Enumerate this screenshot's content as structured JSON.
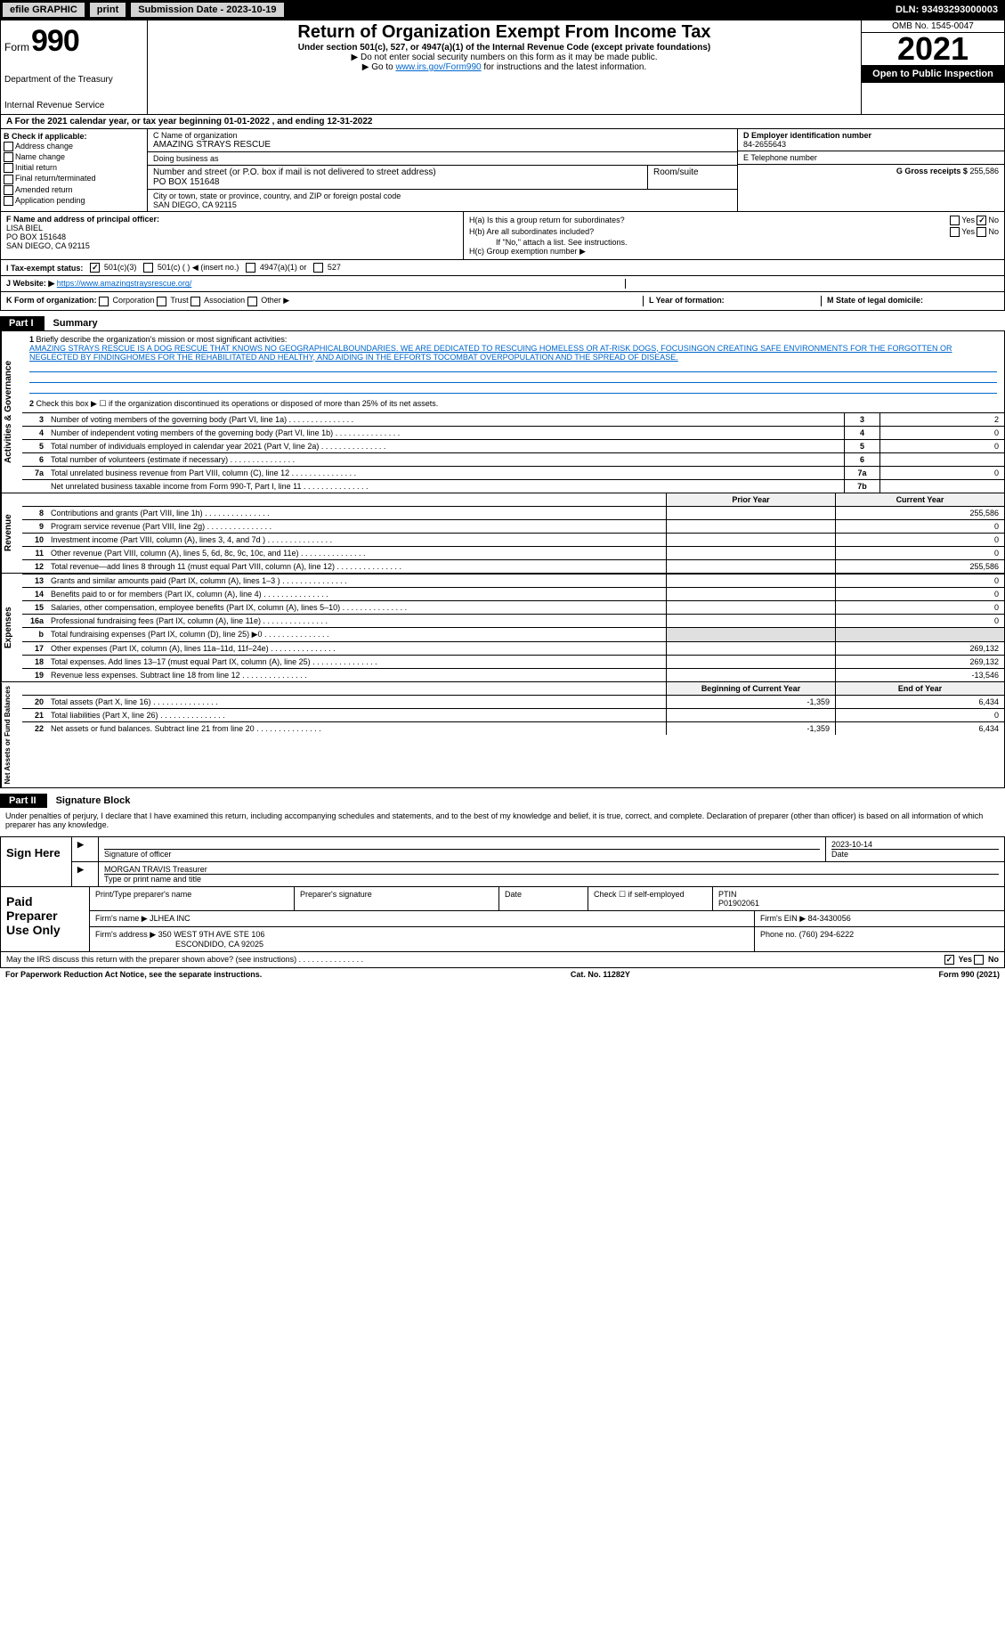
{
  "topbar": {
    "efile": "efile GRAPHIC",
    "print": "print",
    "submission": "Submission Date - 2023-10-19",
    "dln": "DLN: 93493293000003"
  },
  "header": {
    "form_label": "Form",
    "form_num": "990",
    "dept": "Department of the Treasury",
    "irs": "Internal Revenue Service",
    "title": "Return of Organization Exempt From Income Tax",
    "subtitle": "Under section 501(c), 527, or 4947(a)(1) of the Internal Revenue Code (except private foundations)",
    "note1": "▶ Do not enter social security numbers on this form as it may be made public.",
    "note2_pre": "▶ Go to ",
    "note2_link": "www.irs.gov/Form990",
    "note2_post": " for instructions and the latest information.",
    "omb": "OMB No. 1545-0047",
    "year": "2021",
    "inspect": "Open to Public Inspection"
  },
  "row_a": "A For the 2021 calendar year, or tax year beginning 01-01-2022    , and ending 12-31-2022",
  "col_b": {
    "label": "B Check if applicable:",
    "items": [
      "Address change",
      "Name change",
      "Initial return",
      "Final return/terminated",
      "Amended return",
      "Application pending"
    ]
  },
  "col_c": {
    "c_label": "C Name of organization",
    "name": "AMAZING STRAYS RESCUE",
    "dba_label": "Doing business as",
    "addr_label": "Number and street (or P.O. box if mail is not delivered to street address)",
    "room_label": "Room/suite",
    "addr": "PO BOX 151648",
    "city_label": "City or town, state or province, country, and ZIP or foreign postal code",
    "city": "SAN DIEGO, CA  92115"
  },
  "col_d": {
    "d_label": "D Employer identification number",
    "ein": "84-2655643",
    "e_label": "E Telephone number",
    "phone": "",
    "g_label": "G Gross receipts $",
    "gross": "255,586"
  },
  "officer": {
    "f_label": "F Name and address of principal officer:",
    "name": "LISA BIEL",
    "addr1": "PO BOX 151648",
    "addr2": "SAN DIEGO, CA  92115",
    "ha": "H(a)  Is this a group return for subordinates?",
    "ha_ans": "No",
    "hb": "H(b)  Are all subordinates included?",
    "hb_note": "If \"No,\" attach a list. See instructions.",
    "hc": "H(c)  Group exemption number ▶"
  },
  "tax": {
    "i_label": "I  Tax-exempt status:",
    "opt1": "501(c)(3)",
    "opt2": "501(c) (   ) ◀ (insert no.)",
    "opt3": "4947(a)(1) or",
    "opt4": "527"
  },
  "website": {
    "j_label": "J  Website: ▶",
    "url": "https://www.amazingstraysrescue.org/"
  },
  "k_row": {
    "k_label": "K Form of organization:",
    "opts": [
      "Corporation",
      "Trust",
      "Association",
      "Other ▶"
    ],
    "l_label": "L Year of formation:",
    "m_label": "M State of legal domicile:"
  },
  "part1": {
    "tab": "Part I",
    "title": "Summary"
  },
  "summary": {
    "q1": "Briefly describe the organization's mission or most significant activities:",
    "mission": "AMAZING STRAYS RESCUE IS A DOG RESCUE THAT KNOWS NO GEOGRAPHICALBOUNDARIES. WE ARE DEDICATED TO RESCUING HOMELESS OR AT-RISK DOGS, FOCUSINGON CREATING SAFE ENVIRONMENTS FOR THE FORGOTTEN OR NEGLECTED BY FINDINGHOMES FOR THE REHABILITATED AND HEALTHY, AND AIDING IN THE EFFORTS TOCOMBAT OVERPOPULATION AND THE SPREAD OF DISEASE.",
    "q2": "Check this box ▶ ☐  if the organization discontinued its operations or disposed of more than 25% of its net assets.",
    "sidebars": {
      "gov": "Activities & Governance",
      "rev": "Revenue",
      "exp": "Expenses",
      "net": "Net Assets or Fund Balances"
    },
    "lines_gov": [
      {
        "n": "3",
        "d": "Number of voting members of the governing body (Part VI, line 1a)",
        "box": "3",
        "v": "2"
      },
      {
        "n": "4",
        "d": "Number of independent voting members of the governing body (Part VI, line 1b)",
        "box": "4",
        "v": "0"
      },
      {
        "n": "5",
        "d": "Total number of individuals employed in calendar year 2021 (Part V, line 2a)",
        "box": "5",
        "v": "0"
      },
      {
        "n": "6",
        "d": "Total number of volunteers (estimate if necessary)",
        "box": "6",
        "v": ""
      },
      {
        "n": "7a",
        "d": "Total unrelated business revenue from Part VIII, column (C), line 12",
        "box": "7a",
        "v": "0"
      },
      {
        "n": "",
        "d": "Net unrelated business taxable income from Form 990-T, Part I, line 11",
        "box": "7b",
        "v": ""
      }
    ],
    "prior_hdr": "Prior Year",
    "curr_hdr": "Current Year",
    "lines_rev": [
      {
        "n": "8",
        "d": "Contributions and grants (Part VIII, line 1h)",
        "p": "",
        "c": "255,586"
      },
      {
        "n": "9",
        "d": "Program service revenue (Part VIII, line 2g)",
        "p": "",
        "c": "0"
      },
      {
        "n": "10",
        "d": "Investment income (Part VIII, column (A), lines 3, 4, and 7d )",
        "p": "",
        "c": "0"
      },
      {
        "n": "11",
        "d": "Other revenue (Part VIII, column (A), lines 5, 6d, 8c, 9c, 10c, and 11e)",
        "p": "",
        "c": "0"
      },
      {
        "n": "12",
        "d": "Total revenue—add lines 8 through 11 (must equal Part VIII, column (A), line 12)",
        "p": "",
        "c": "255,586"
      }
    ],
    "lines_exp": [
      {
        "n": "13",
        "d": "Grants and similar amounts paid (Part IX, column (A), lines 1–3 )",
        "p": "",
        "c": "0"
      },
      {
        "n": "14",
        "d": "Benefits paid to or for members (Part IX, column (A), line 4)",
        "p": "",
        "c": "0"
      },
      {
        "n": "15",
        "d": "Salaries, other compensation, employee benefits (Part IX, column (A), lines 5–10)",
        "p": "",
        "c": "0"
      },
      {
        "n": "16a",
        "d": "Professional fundraising fees (Part IX, column (A), line 11e)",
        "p": "",
        "c": "0"
      },
      {
        "n": "b",
        "d": "Total fundraising expenses (Part IX, column (D), line 25) ▶0",
        "p": "shaded",
        "c": "shaded"
      },
      {
        "n": "17",
        "d": "Other expenses (Part IX, column (A), lines 11a–11d, 11f–24e)",
        "p": "",
        "c": "269,132"
      },
      {
        "n": "18",
        "d": "Total expenses. Add lines 13–17 (must equal Part IX, column (A), line 25)",
        "p": "",
        "c": "269,132"
      },
      {
        "n": "19",
        "d": "Revenue less expenses. Subtract line 18 from line 12",
        "p": "",
        "c": "-13,546"
      }
    ],
    "begin_hdr": "Beginning of Current Year",
    "end_hdr": "End of Year",
    "lines_net": [
      {
        "n": "20",
        "d": "Total assets (Part X, line 16)",
        "p": "-1,359",
        "c": "6,434"
      },
      {
        "n": "21",
        "d": "Total liabilities (Part X, line 26)",
        "p": "",
        "c": "0"
      },
      {
        "n": "22",
        "d": "Net assets or fund balances. Subtract line 21 from line 20",
        "p": "-1,359",
        "c": "6,434"
      }
    ]
  },
  "part2": {
    "tab": "Part II",
    "title": "Signature Block"
  },
  "sig": {
    "decl": "Under penalties of perjury, I declare that I have examined this return, including accompanying schedules and statements, and to the best of my knowledge and belief, it is true, correct, and complete. Declaration of preparer (other than officer) is based on all information of which preparer has any knowledge.",
    "sign_here": "Sign Here",
    "sig_of_officer": "Signature of officer",
    "date": "2023-10-14",
    "date_label": "Date",
    "officer_name": "MORGAN TRAVIS Treasurer",
    "type_name": "Type or print name and title"
  },
  "prep": {
    "label": "Paid Preparer Use Only",
    "h1": "Print/Type preparer's name",
    "h2": "Preparer's signature",
    "h3": "Date",
    "h4": "Check ☐ if self-employed",
    "h5": "PTIN",
    "ptin": "P01902061",
    "firm_label": "Firm's name    ▶",
    "firm": "JLHEA INC",
    "ein_label": "Firm's EIN ▶",
    "ein": "84-3430056",
    "addr_label": "Firm's address ▶",
    "addr1": "350 WEST 9TH AVE STE 106",
    "addr2": "ESCONDIDO, CA  92025",
    "phone_label": "Phone no.",
    "phone": "(760) 294-6222"
  },
  "discuss": {
    "q": "May the IRS discuss this return with the preparer shown above? (see instructions)",
    "yes": "Yes",
    "no": "No"
  },
  "footer": {
    "left": "For Paperwork Reduction Act Notice, see the separate instructions.",
    "mid": "Cat. No. 11282Y",
    "right": "Form 990 (2021)"
  }
}
